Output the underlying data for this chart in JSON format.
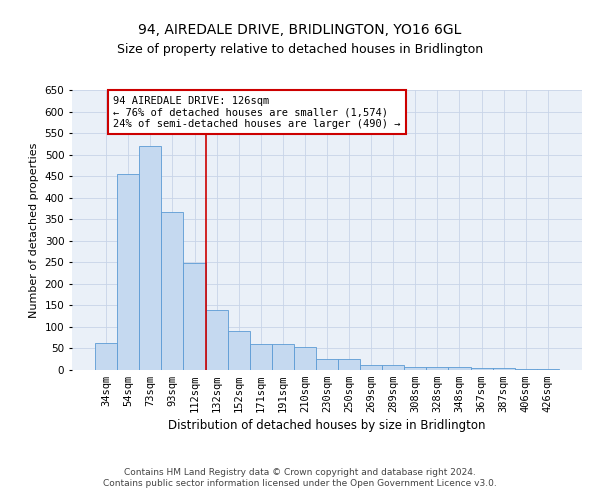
{
  "title": "94, AIREDALE DRIVE, BRIDLINGTON, YO16 6GL",
  "subtitle": "Size of property relative to detached houses in Bridlington",
  "xlabel": "Distribution of detached houses by size in Bridlington",
  "ylabel": "Number of detached properties",
  "bar_color": "#c5d9f0",
  "bar_edge_color": "#5b9bd5",
  "background_color": "#ffffff",
  "plot_bg_color": "#eaf0f8",
  "grid_color": "#c8d4e8",
  "annotation_box_color": "#cc0000",
  "vline_color": "#cc0000",
  "categories": [
    "34sqm",
    "54sqm",
    "73sqm",
    "93sqm",
    "112sqm",
    "132sqm",
    "152sqm",
    "171sqm",
    "191sqm",
    "210sqm",
    "230sqm",
    "250sqm",
    "269sqm",
    "289sqm",
    "308sqm",
    "328sqm",
    "348sqm",
    "367sqm",
    "387sqm",
    "406sqm",
    "426sqm"
  ],
  "values": [
    62,
    456,
    521,
    367,
    249,
    140,
    91,
    61,
    60,
    54,
    26,
    26,
    11,
    12,
    7,
    6,
    8,
    5,
    4,
    2,
    2
  ],
  "vline_position": 4.5,
  "annotation_text": "94 AIREDALE DRIVE: 126sqm\n← 76% of detached houses are smaller (1,574)\n24% of semi-detached houses are larger (490) →",
  "ylim": [
    0,
    650
  ],
  "yticks": [
    0,
    50,
    100,
    150,
    200,
    250,
    300,
    350,
    400,
    450,
    500,
    550,
    600,
    650
  ],
  "footnote": "Contains HM Land Registry data © Crown copyright and database right 2024.\nContains public sector information licensed under the Open Government Licence v3.0.",
  "title_fontsize": 10,
  "subtitle_fontsize": 9,
  "xlabel_fontsize": 8.5,
  "ylabel_fontsize": 8,
  "tick_fontsize": 7.5,
  "annotation_fontsize": 7.5,
  "footnote_fontsize": 6.5
}
